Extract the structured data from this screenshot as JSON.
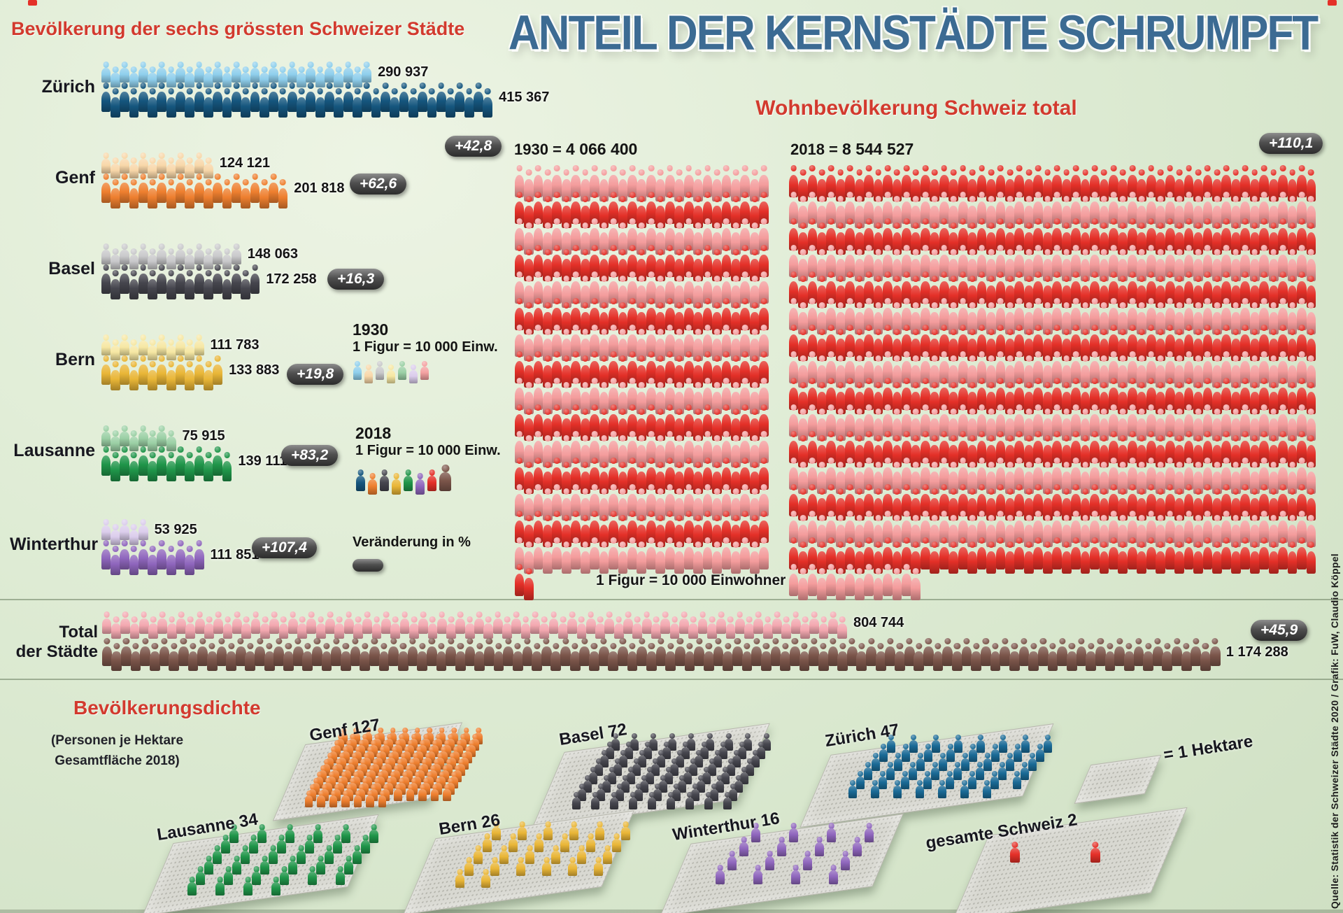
{
  "title": "ANTEIL DER KERNSTÄDTE SCHRUMPFT",
  "cities_chart": {
    "heading": "Bevölkerung der sechs grössten Schweizer Städte",
    "unit_note_1930": {
      "year": "1930",
      "text": "1 Figur = 10 000 Einw."
    },
    "unit_note_2018": {
      "year": "2018",
      "text": "1 Figur = 10 000 Einw."
    },
    "change_legend": "Veränderung in %",
    "cities": [
      {
        "name": "Zürich",
        "pop_1930": "290 937",
        "pop_2018": "415 367",
        "change": "+42,8",
        "figures_1930": 29,
        "figures_2018": 42,
        "color_1930": "#8fcfec",
        "color_2018": "#15567e"
      },
      {
        "name": "Genf",
        "pop_1930": "124 121",
        "pop_2018": "201 818",
        "change": "+62,6",
        "figures_1930": 12,
        "figures_2018": 20,
        "color_1930": "#f8d7a9",
        "color_2018": "#ee7f2f"
      },
      {
        "name": "Basel",
        "pop_1930": "148 063",
        "pop_2018": "172 258",
        "change": "+16,3",
        "figures_1930": 15,
        "figures_2018": 17,
        "color_1930": "#c9c9cb",
        "color_2018": "#46464e"
      },
      {
        "name": "Bern",
        "pop_1930": "111 783",
        "pop_2018": "133 883",
        "change": "+19,8",
        "figures_1930": 11,
        "figures_2018": 13,
        "color_1930": "#f6e7a3",
        "color_2018": "#e9b637"
      },
      {
        "name": "Lausanne",
        "pop_1930": "75 915",
        "pop_2018": "139 111",
        "change": "+83,2",
        "figures_1930": 8,
        "figures_2018": 14,
        "color_1930": "#9bd0a5",
        "color_2018": "#1f9549"
      },
      {
        "name": "Winterthur",
        "pop_1930": "53 925",
        "pop_2018": "111 851",
        "change": "+107,4",
        "figures_1930": 5,
        "figures_2018": 11,
        "color_1930": "#dbcdec",
        "color_2018": "#8f66bd"
      }
    ],
    "legend_figure_colors_1930": [
      "#8fcfec",
      "#f8d7a9",
      "#c9c9cb",
      "#f6e7a3",
      "#9bd0a5",
      "#dbcdec",
      "#f4a2a2"
    ],
    "legend_figure_colors_2018": [
      "#15567e",
      "#ee7f2f",
      "#46464e",
      "#e9b637",
      "#1f9549",
      "#8f66bd",
      "#e43028",
      "#7b554a"
    ]
  },
  "switzerland_total": {
    "heading": "Wohnbevölkerung Schweiz total",
    "label_1930": "1930 =",
    "value_1930": "4 066 400",
    "figures_1930": 407,
    "label_2018": "2018 =",
    "value_2018": "8 544 527",
    "figures_2018": 854,
    "change": "+110,1",
    "caption": "1 Figur = 10 000 Einwohner",
    "row_color_light": "#f49c9c",
    "row_color_dark": "#e43028"
  },
  "cities_total": {
    "label_line1": "Total",
    "label_line2": "der Städte",
    "pop_1930": "804 744",
    "figures_1930": 80,
    "color_1930": "#f3a8b0",
    "pop_2018": "1 174 288",
    "figures_2018": 117,
    "color_2018": "#7b554a",
    "change": "+45,9"
  },
  "density": {
    "heading": "Bevölkerungsdichte",
    "subtitle_line1": "(Personen je Hektare",
    "subtitle_line2": "Gesamtfläche 2018)",
    "hectare_note": "= 1 Hektare",
    "items": [
      {
        "name": "Genf",
        "value": 127,
        "color": "#ee7f2f"
      },
      {
        "name": "Basel",
        "value": 72,
        "color": "#46464e"
      },
      {
        "name": "Zürich",
        "value": 47,
        "color": "#1a6a96"
      },
      {
        "name": "Lausanne",
        "value": 34,
        "color": "#1f9549"
      },
      {
        "name": "Bern",
        "value": 26,
        "color": "#e9b637"
      },
      {
        "name": "Winterthur",
        "value": 16,
        "color": "#8f66bd"
      },
      {
        "name": "gesamte Schweiz",
        "value": 2,
        "color": "#e43028"
      }
    ]
  },
  "source": "Quelle: Statistik der Schweizer Städte 2020 / Grafik: FuW, Claudio Köppel",
  "chart_data": [
    {
      "type": "bar",
      "style": "pictogram",
      "title": "Bevölkerung der sechs grössten Schweizer Städte",
      "unit": "1 Figur = 10 000 Einwohner",
      "categories": [
        "Zürich",
        "Genf",
        "Basel",
        "Bern",
        "Lausanne",
        "Winterthur"
      ],
      "series": [
        {
          "name": "1930",
          "values": [
            290937,
            124121,
            148063,
            111783,
            75915,
            53925
          ]
        },
        {
          "name": "2018",
          "values": [
            415367,
            201818,
            172258,
            133883,
            139111,
            111851
          ]
        }
      ],
      "change_percent": [
        42.8,
        62.6,
        16.3,
        19.8,
        83.2,
        107.4
      ]
    },
    {
      "type": "bar",
      "style": "pictogram-block",
      "title": "Wohnbevölkerung Schweiz total",
      "unit": "1 Figur = 10 000 Einwohner",
      "categories": [
        "1930",
        "2018"
      ],
      "values": [
        4066400,
        8544527
      ],
      "change_percent": 110.1
    },
    {
      "type": "bar",
      "style": "pictogram",
      "title": "Total der Städte",
      "unit": "1 Figur = 10 000 Einwohner",
      "categories": [
        "1930",
        "2018"
      ],
      "values": [
        804744,
        1174288
      ],
      "change_percent": 45.9
    },
    {
      "type": "bar",
      "style": "pictogram-grid",
      "title": "Bevölkerungsdichte (Personen je Hektare Gesamtfläche 2018)",
      "categories": [
        "Genf",
        "Basel",
        "Zürich",
        "Lausanne",
        "Bern",
        "Winterthur",
        "gesamte Schweiz"
      ],
      "values": [
        127,
        72,
        47,
        34,
        26,
        16,
        2
      ]
    }
  ]
}
